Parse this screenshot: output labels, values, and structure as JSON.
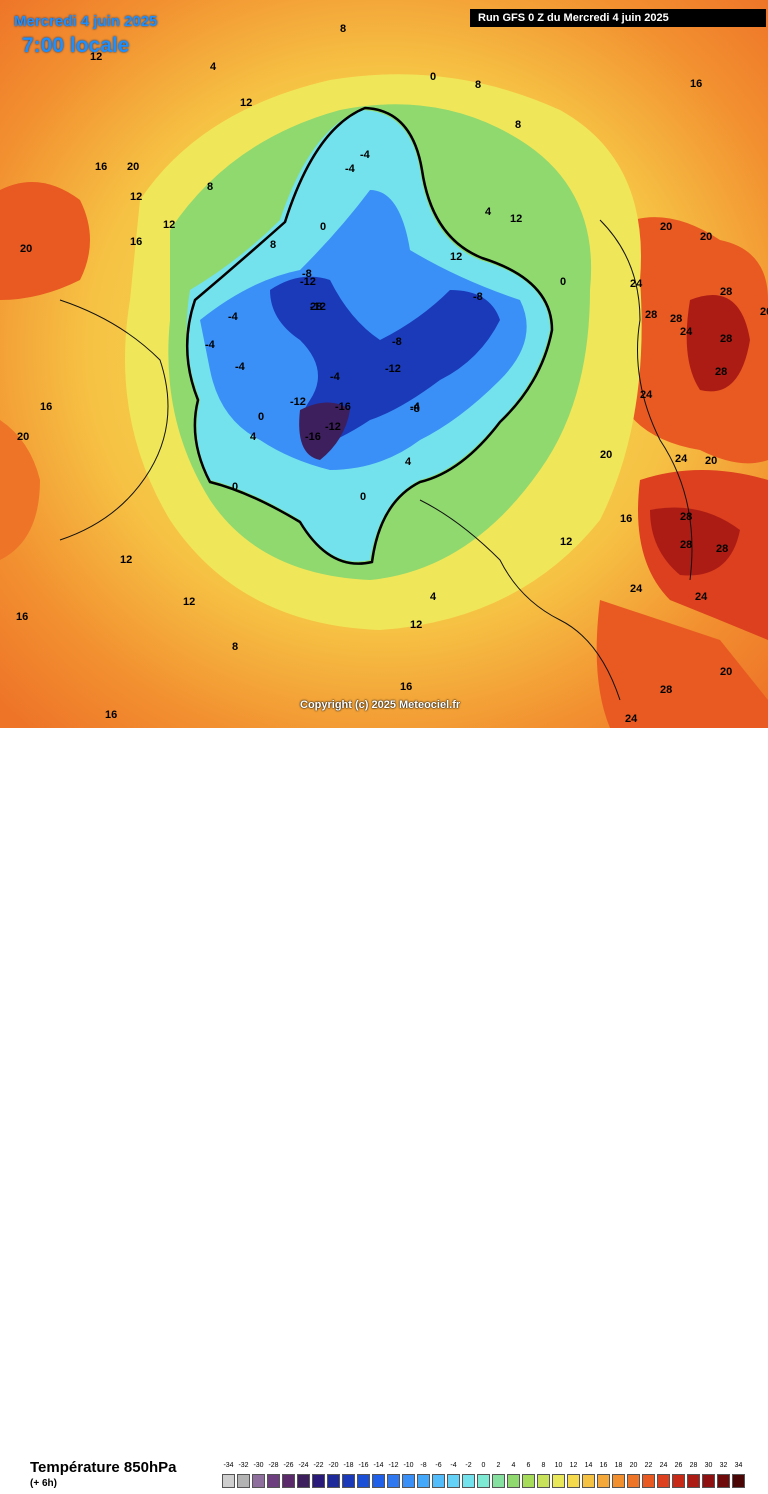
{
  "header": {
    "date_line": "Mercredi 4 juin 2025",
    "time_line": "7:00 locale",
    "run_line": "Run GFS 0 Z du Mercredi 4 juin 2025"
  },
  "map": {
    "projection": "polar stereographic, north pole centred",
    "copyright": "Copyright (c) 2025 Meteociel.fr",
    "isotherm_labels": [
      "-12",
      "-12",
      "-12",
      "-12",
      "-12",
      "-16",
      "-16",
      "-8",
      "-8",
      "-8",
      "-8",
      "-4",
      "-4",
      "-4",
      "-4",
      "-4",
      "-4",
      "-4",
      "0",
      "0",
      "0",
      "0",
      "0",
      "0",
      "4",
      "4",
      "4",
      "4",
      "4",
      "8",
      "8",
      "8",
      "8",
      "8",
      "8",
      "12",
      "12",
      "12",
      "12",
      "12",
      "12",
      "12",
      "12",
      "12",
      "12",
      "16",
      "16",
      "16",
      "16",
      "16",
      "16",
      "16",
      "16",
      "20",
      "20",
      "20",
      "20",
      "20",
      "20",
      "20",
      "20",
      "20",
      "24",
      "24",
      "24",
      "24",
      "24",
      "24",
      "24",
      "28",
      "28",
      "28",
      "28",
      "28",
      "28",
      "28",
      "28",
      "28",
      "28"
    ],
    "colors": {
      "very_cold": "#0a1a9a",
      "cold": "#2a52e0",
      "cool": "#3aa0f5",
      "near_zero": "#6fe0ec",
      "mild_green": "#7ed66a",
      "warm_yellow": "#f0e65a",
      "warm": "#f6b53c",
      "hot": "#ee7a24",
      "very_hot": "#d8361c",
      "extreme": "#8a0a0a"
    }
  },
  "legend": {
    "parameter": "Température 850hPa",
    "step": "(+ 6h)",
    "unit_values": [
      "-34",
      "-32",
      "-30",
      "-28",
      "-26",
      "-24",
      "-22",
      "-20",
      "-18",
      "-16",
      "-14",
      "-12",
      "-10",
      "-8",
      "-6",
      "-4",
      "-2",
      "0",
      "2",
      "4",
      "6",
      "8",
      "10",
      "12",
      "14",
      "16",
      "18",
      "20",
      "22",
      "24",
      "26",
      "28",
      "30",
      "32",
      "34"
    ],
    "swatch_colors": [
      "#cfcfcf",
      "#b3b3b3",
      "#8f6f9e",
      "#6e3f7e",
      "#5a2a6a",
      "#3d1f5e",
      "#2a1a7a",
      "#1f2a9a",
      "#1a3aba",
      "#1a4fd6",
      "#2060e8",
      "#2f78f0",
      "#3a90f6",
      "#44a8fa",
      "#53bdfb",
      "#64d2f7",
      "#74e2ec",
      "#7fead4",
      "#86e0a0",
      "#8fd96e",
      "#a6dc5a",
      "#c8e25a",
      "#e8e85a",
      "#f5da4e",
      "#f6c244",
      "#f5a83a",
      "#f29030",
      "#ee7428",
      "#e85a22",
      "#dc401e",
      "#c82a18",
      "#ad1c14",
      "#8f1010",
      "#6e0a0a",
      "#4a0505"
    ]
  }
}
